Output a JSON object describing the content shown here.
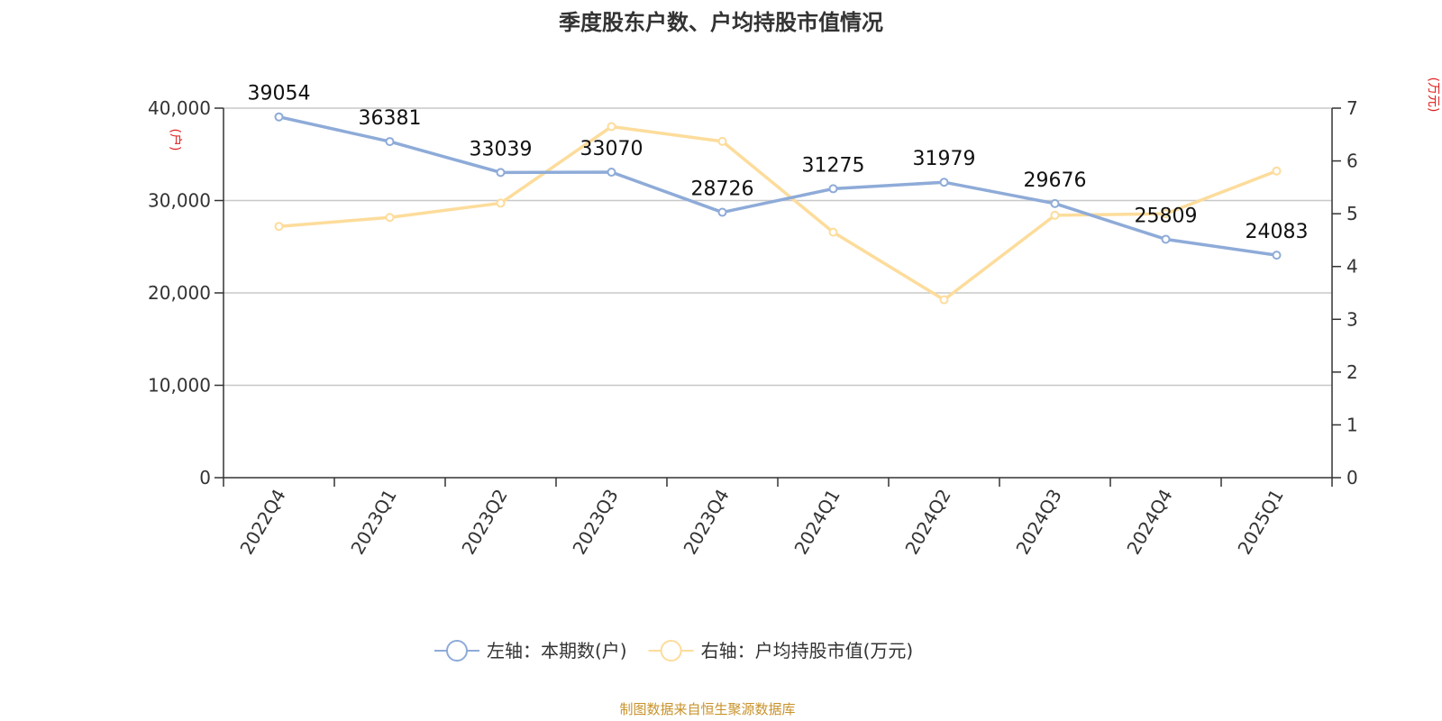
{
  "title": "季度股东户数、户均持股市值情况",
  "source": "制图数据来自恒生聚源数据库",
  "chart_data": {
    "type": "line",
    "categories": [
      "2022Q4",
      "2023Q1",
      "2023Q2",
      "2023Q3",
      "2023Q4",
      "2024Q1",
      "2024Q2",
      "2024Q3",
      "2024Q4",
      "2025Q1"
    ],
    "left_axis": {
      "unit": "(户)",
      "ylim": [
        0,
        40000
      ],
      "ticks": [
        0,
        10000,
        20000,
        30000,
        40000
      ],
      "tick_labels": [
        "0",
        "10,000",
        "20,000",
        "30,000",
        "40,000"
      ]
    },
    "right_axis": {
      "unit": "(万元)",
      "ylim": [
        0,
        7
      ],
      "ticks": [
        0,
        1,
        2,
        3,
        4,
        5,
        6,
        7
      ],
      "tick_labels": [
        "0",
        "1",
        "2",
        "3",
        "4",
        "5",
        "6",
        "7"
      ]
    },
    "series": [
      {
        "name": "左轴：本期数(户)",
        "axis": "left",
        "color": "#8eabd8",
        "values": [
          39054,
          36381,
          33039,
          33070,
          28726,
          31275,
          31979,
          29676,
          25809,
          24083
        ],
        "labels": [
          "39054",
          "36381",
          "33039",
          "33070",
          "28726",
          "31275",
          "31979",
          "29676",
          "25809",
          "24083"
        ]
      },
      {
        "name": "右轴：户均持股市值(万元)",
        "axis": "right",
        "color": "#fddc9b",
        "values": [
          4.76,
          4.93,
          5.2,
          6.65,
          6.37,
          4.65,
          3.37,
          4.97,
          5.0,
          5.81
        ]
      }
    ],
    "grid": true,
    "legend_position": "bottom"
  }
}
